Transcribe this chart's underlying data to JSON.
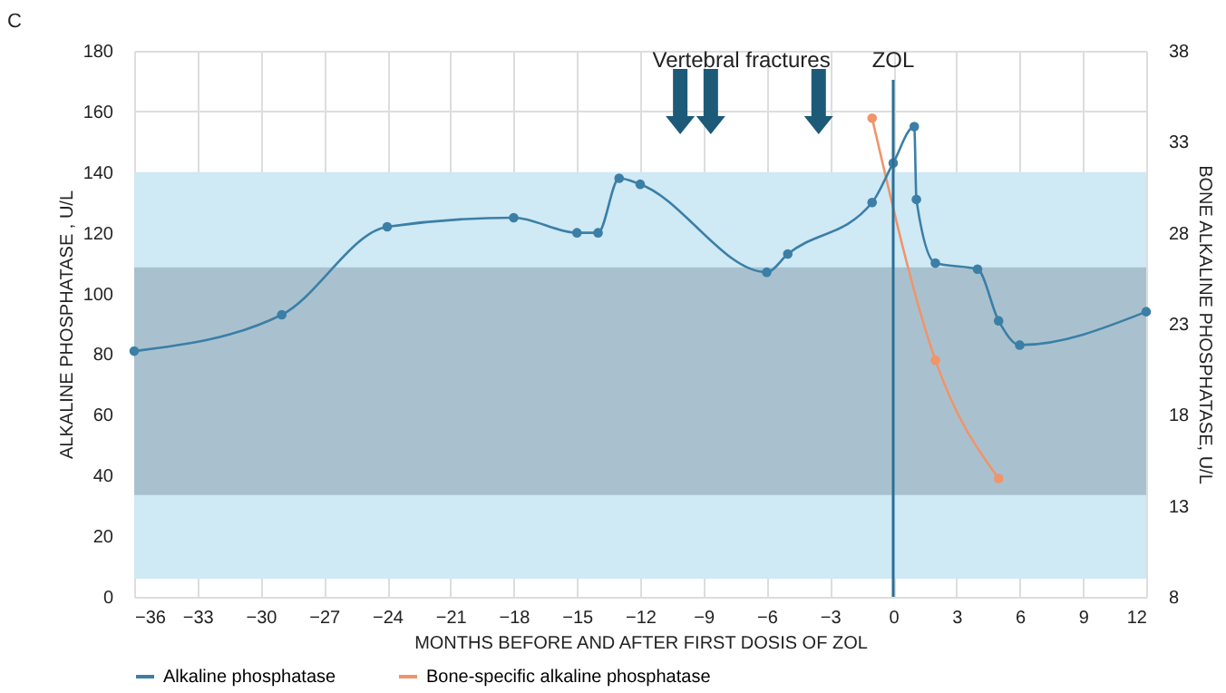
{
  "chart_data": {
    "type": "line",
    "xlabel": "MONTHS BEFORE AND AFTER FIRST DOSIS OF ZOL",
    "ylabel": "ALKALINE PHOSPHATASE , U/L",
    "y2label": "BONE ALKALINE PHOSPHATASE, U/L",
    "xlim": [
      -36,
      12
    ],
    "xticks": [
      -36,
      -33,
      -30,
      -27,
      -24,
      -21,
      -18,
      -15,
      -12,
      -9,
      -6,
      -3,
      0,
      3,
      6,
      9,
      12
    ],
    "ylim": [
      0,
      180
    ],
    "yticks": [
      0,
      20,
      40,
      60,
      80,
      100,
      120,
      140,
      160,
      180
    ],
    "y2lim": [
      8,
      38
    ],
    "y2ticks": [
      8,
      13,
      18,
      23,
      28,
      33,
      38
    ],
    "series": [
      {
        "name": "Alkaline phosphatase",
        "color": "#3b7fa6",
        "x": [
          -36,
          -29,
          -24,
          -18,
          -15,
          -14,
          -13,
          -12,
          -6,
          -5,
          -1,
          0,
          1,
          1.1,
          2,
          4,
          5,
          6,
          12
        ],
        "values": [
          81,
          93,
          122,
          125,
          120,
          120,
          138,
          136,
          107,
          113,
          130,
          143,
          155,
          131,
          110,
          108,
          91,
          83,
          94
        ]
      },
      {
        "name": "Bone-specific alkaline phosphatase",
        "color": "#f0946a",
        "axis": "y2",
        "x": [
          -1,
          2,
          5
        ],
        "values": [
          34.3,
          21.0,
          14.5
        ]
      }
    ],
    "bands": [
      {
        "axis": "y",
        "from": 6,
        "to": 140,
        "color": "#cfe9f5"
      },
      {
        "axis": "y2",
        "from": 13.6,
        "to": 26.1,
        "color": "#a9c1cf"
      }
    ],
    "ref_lines": [
      {
        "axis": "x",
        "value": 0,
        "label": "ZOL",
        "color": "#2b6f96"
      }
    ],
    "annotations": [
      "C",
      "Vertebral fractures"
    ],
    "grid": true,
    "legend": "bottom",
    "marker": "circle",
    "line_style": "solid"
  }
}
